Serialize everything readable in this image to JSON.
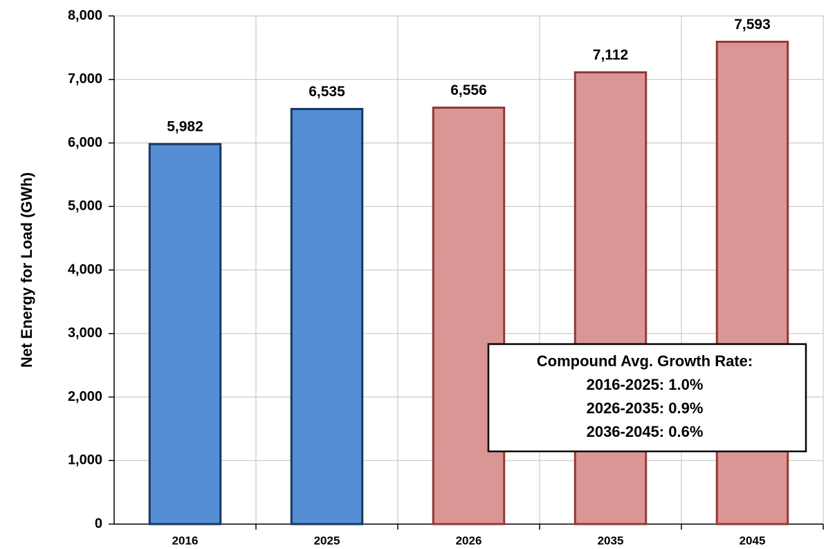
{
  "chart_data": {
    "type": "bar",
    "ylabel": "Net Energy for Load (GWh)",
    "categories": [
      "2016",
      "2025",
      "2026",
      "2035",
      "2045"
    ],
    "values": [
      5982,
      6535,
      6556,
      7112,
      7593
    ],
    "value_labels": [
      "5,982",
      "6,535",
      "6,556",
      "7,112",
      "7,593"
    ],
    "colors": [
      "#558ed5",
      "#558ed5",
      "#d99694",
      "#d99694",
      "#d99694"
    ],
    "edge_colors": [
      "#17375e",
      "#17375e",
      "#953735",
      "#953735",
      "#953735"
    ],
    "ylim": [
      0,
      8000
    ],
    "yticks": [
      0,
      {
        "value": 1000,
        "label": "1,000"
      },
      {
        "value": 2000,
        "label": "2,000"
      },
      {
        "value": 3000,
        "label": "3,000"
      },
      {
        "value": 4000,
        "label": "4,000"
      },
      {
        "value": 5000,
        "label": "5,000"
      },
      {
        "value": 6000,
        "label": "6,000"
      },
      {
        "value": 7000,
        "label": "7,000"
      },
      {
        "value": 8000,
        "label": "8,000"
      }
    ],
    "grid": true,
    "annotation": [
      "Compound Avg. Growth Rate:",
      "2016-2025: 1.0%",
      "2026-2035: 0.9%",
      "2036-2045: 0.6%"
    ]
  }
}
